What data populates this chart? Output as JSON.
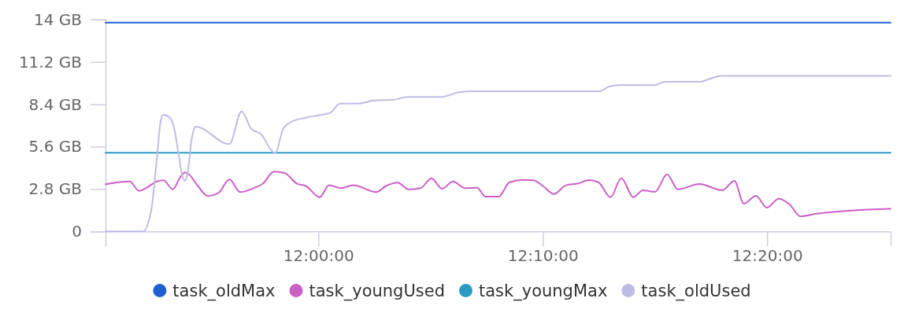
{
  "chart_data": {
    "type": "line",
    "xlim": [
      11.842,
      12.425
    ],
    "xticks": [
      {
        "value": 12,
        "label": "12:00:00"
      },
      {
        "value": 12.166667,
        "label": "12:10:00"
      },
      {
        "value": 12.333333,
        "label": "12:20:00"
      }
    ],
    "ylim": [
      0,
      14
    ],
    "yticks": [
      0,
      {
        "value": 2.8,
        "label": "2.8 GB"
      },
      {
        "value": 5.6,
        "label": "5.6 GB"
      },
      {
        "value": 8.4,
        "label": "8.4 GB"
      },
      {
        "value": 11.2,
        "label": "11.2 GB"
      },
      {
        "value": 14,
        "label": "14 GB"
      }
    ],
    "grid": false,
    "legend": "bottom",
    "series": [
      {
        "name": "task_oldMax",
        "color": "#1f5fd1",
        "x": [
          11.842,
          12.425
        ],
        "values": [
          13.8,
          13.8
        ]
      },
      {
        "name": "task_youngUsed",
        "color": "#cc5fc6",
        "x": [
          11.842,
          11.86,
          11.867,
          11.873,
          11.88,
          11.885,
          11.892,
          11.897,
          11.901,
          11.904,
          11.91,
          11.918,
          11.926,
          11.934,
          11.942,
          11.951,
          11.959,
          11.967,
          11.975,
          11.984,
          11.991,
          12.001,
          12.008,
          12.017,
          12.026,
          12.043,
          12.05,
          12.059,
          12.067,
          12.076,
          12.084,
          12.092,
          12.1,
          12.109,
          12.118,
          12.124,
          12.134,
          12.142,
          12.152,
          12.16,
          12.167,
          12.175,
          12.184,
          12.193,
          12.201,
          12.208,
          12.217,
          12.225,
          12.234,
          12.241,
          12.25,
          12.259,
          12.267,
          12.283,
          12.3,
          12.309,
          12.316,
          12.325,
          12.333,
          12.342,
          12.35,
          12.358,
          12.37,
          12.384,
          12.397,
          12.425
        ],
        "values": [
          3.12,
          3.3,
          2.68,
          2.91,
          3.3,
          3.38,
          2.78,
          3.51,
          3.9,
          3.77,
          3.08,
          2.34,
          2.56,
          3.43,
          2.6,
          2.82,
          3.17,
          3.95,
          3.86,
          3.17,
          2.99,
          2.26,
          3.05,
          2.86,
          3.05,
          2.6,
          2.99,
          3.22,
          2.78,
          2.86,
          3.51,
          2.82,
          3.3,
          2.86,
          2.89,
          2.3,
          2.3,
          3.25,
          3.41,
          3.38,
          2.99,
          2.47,
          3.05,
          3.17,
          3.39,
          3.25,
          2.26,
          3.51,
          2.26,
          2.72,
          2.61,
          3.77,
          2.78,
          3.13,
          2.72,
          3.34,
          1.83,
          2.35,
          1.57,
          2.16,
          1.78,
          1.0,
          1.17,
          1.3,
          1.38,
          1.49
        ]
      },
      {
        "name": "task_youngMax",
        "color": "#2a9bc4",
        "x": [
          11.842,
          12.425
        ],
        "values": [
          5.2,
          5.2
        ]
      },
      {
        "name": "task_oldUsed",
        "color": "#bdbde3",
        "x": [
          11.842,
          11.87,
          11.876,
          11.88,
          11.883,
          11.885,
          11.89,
          11.893,
          11.896,
          11.899,
          11.901,
          11.903,
          11.906,
          11.909,
          11.934,
          11.943,
          11.95,
          11.958,
          11.964,
          11.968,
          11.974,
          11.98,
          11.99,
          12.0,
          12.009,
          12.016,
          12.03,
          12.041,
          12.056,
          12.066,
          12.091,
          12.105,
          12.115,
          12.209,
          12.216,
          12.224,
          12.25,
          12.257,
          12.284,
          12.29,
          12.299,
          12.425
        ],
        "values": [
          0,
          0,
          1.43,
          4.7,
          7.3,
          7.7,
          7.5,
          6.8,
          5.25,
          3.7,
          3.34,
          3.86,
          6.1,
          6.92,
          5.77,
          7.93,
          6.8,
          6.37,
          5.5,
          5.16,
          6.8,
          7.24,
          7.5,
          7.67,
          7.84,
          8.45,
          8.45,
          8.65,
          8.7,
          8.88,
          8.88,
          9.2,
          9.26,
          9.26,
          9.57,
          9.66,
          9.66,
          9.89,
          9.89,
          10.06,
          10.27,
          10.27
        ]
      }
    ]
  }
}
